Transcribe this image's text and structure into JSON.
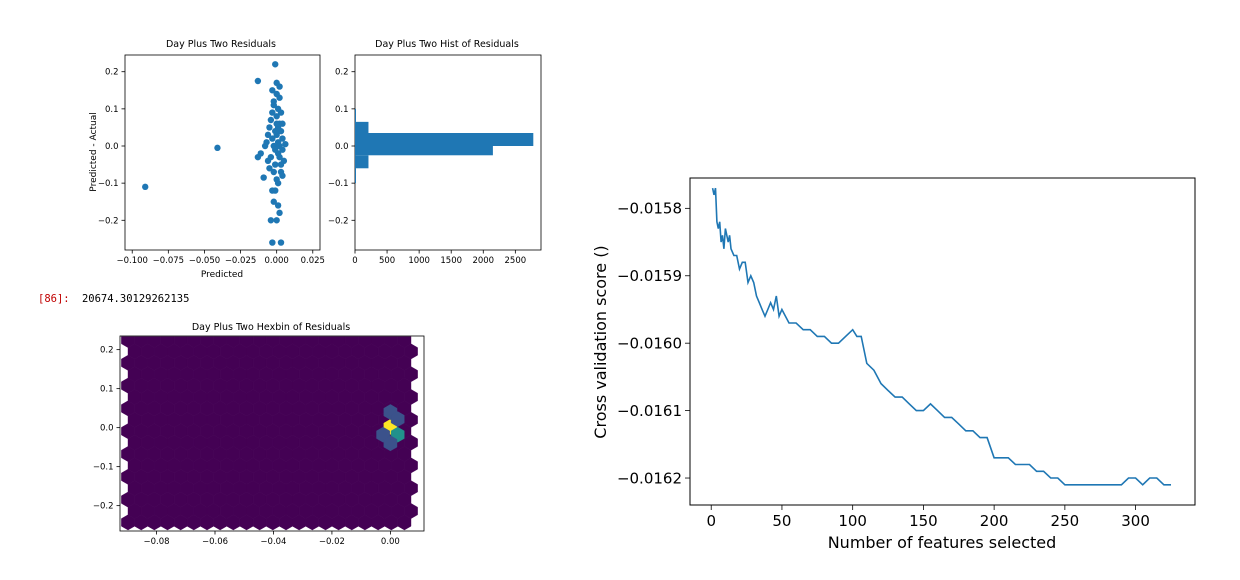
{
  "output_prompt": "[86]:",
  "output_value": "20674.30129262135",
  "colors": {
    "series": "#1f77b4",
    "hex_background": "#440154",
    "hex_low": "#3b528b",
    "hex_mid": "#21918c",
    "hex_high": "#fde725",
    "prompt": "#c00000"
  },
  "chart_data": [
    {
      "type": "scatter",
      "title": "Day Plus Two Residuals",
      "xlabel": "Predicted",
      "ylabel": "Predicted - Actual",
      "xlim": [
        -0.105,
        0.03
      ],
      "ylim": [
        -0.28,
        0.245
      ],
      "xticks": [
        -0.1,
        -0.075,
        -0.05,
        -0.025,
        0.0,
        0.025
      ],
      "xtick_labels": [
        "−0.100",
        "−0.075",
        "−0.050",
        "−0.025",
        "0.000",
        "0.025"
      ],
      "yticks": [
        -0.2,
        -0.1,
        0.0,
        0.1,
        0.2
      ],
      "ytick_labels": [
        "−0.2",
        "−0.1",
        "0.0",
        "0.1",
        "0.2"
      ],
      "points": [
        [
          -0.091,
          -0.11
        ],
        [
          -0.041,
          -0.005
        ],
        [
          -0.013,
          0.175
        ],
        [
          -0.013,
          -0.03
        ],
        [
          -0.011,
          -0.02
        ],
        [
          -0.009,
          -0.085
        ],
        [
          -0.008,
          0.0
        ],
        [
          -0.007,
          0.01
        ],
        [
          -0.006,
          -0.04
        ],
        [
          -0.006,
          0.03
        ],
        [
          -0.005,
          -0.06
        ],
        [
          -0.005,
          0.05
        ],
        [
          -0.004,
          -0.2
        ],
        [
          -0.003,
          -0.26
        ],
        [
          -0.003,
          0.15
        ],
        [
          -0.002,
          -0.15
        ],
        [
          -0.002,
          0.12
        ],
        [
          -0.001,
          0.22
        ],
        [
          -0.001,
          -0.12
        ],
        [
          0.0,
          0.17
        ],
        [
          0.0,
          0.08
        ],
        [
          0.0,
          -0.09
        ],
        [
          0.001,
          0.1
        ],
        [
          0.001,
          -0.16
        ],
        [
          0.002,
          -0.18
        ],
        [
          0.002,
          0.06
        ],
        [
          0.003,
          -0.26
        ],
        [
          0.003,
          -0.07
        ],
        [
          0.004,
          0.02
        ],
        [
          0.005,
          -0.04
        ],
        [
          0.006,
          0.005
        ],
        [
          0.003,
          0.04
        ],
        [
          -0.003,
          0.02
        ],
        [
          0.001,
          -0.02
        ],
        [
          0.004,
          -0.01
        ],
        [
          -0.004,
          0.07
        ],
        [
          0.002,
          0.13
        ],
        [
          -0.001,
          -0.05
        ],
        [
          0.0,
          0.03
        ],
        [
          0.002,
          -0.03
        ],
        [
          -0.002,
          0.0
        ],
        [
          0.001,
          0.05
        ],
        [
          -0.001,
          -0.01
        ],
        [
          0.003,
          0.09
        ],
        [
          -0.003,
          -0.12
        ],
        [
          0.0,
          -0.2
        ],
        [
          0.004,
          -0.08
        ],
        [
          -0.002,
          0.11
        ],
        [
          0.001,
          0.01
        ],
        [
          -0.004,
          -0.03
        ],
        [
          0.002,
          0.0
        ],
        [
          0.0,
          0.06
        ],
        [
          -0.001,
          0.04
        ],
        [
          0.003,
          -0.05
        ],
        [
          0.001,
          -0.1
        ],
        [
          -0.002,
          -0.07
        ],
        [
          0.0,
          0.14
        ],
        [
          0.002,
          0.16
        ],
        [
          -0.003,
          0.09
        ],
        [
          0.004,
          0.06
        ]
      ]
    },
    {
      "type": "bar",
      "orientation": "horizontal",
      "title": "Day Plus Two Hist of Residuals",
      "xlim": [
        0,
        2900
      ],
      "ylim": [
        -0.28,
        0.245
      ],
      "xticks": [
        0,
        500,
        1000,
        1500,
        2000,
        2500
      ],
      "xtick_labels": [
        "0",
        "500",
        "1000",
        "1500",
        "2000",
        "2500"
      ],
      "yticks": [
        -0.2,
        -0.1,
        0.0,
        0.1,
        0.2
      ],
      "ytick_labels": [
        "−0.2",
        "−0.1",
        "0.0",
        "0.1",
        "0.2"
      ],
      "bins": [
        {
          "from": -0.1,
          "to": -0.06,
          "count": 5
        },
        {
          "from": -0.06,
          "to": -0.025,
          "count": 210
        },
        {
          "from": -0.025,
          "to": 0.0,
          "count": 2150
        },
        {
          "from": 0.0,
          "to": 0.035,
          "count": 2780
        },
        {
          "from": 0.035,
          "to": 0.065,
          "count": 210
        },
        {
          "from": 0.065,
          "to": 0.1,
          "count": 5
        }
      ]
    },
    {
      "type": "heatmap",
      "subtype": "hexbin",
      "title": "Day Plus Two Hexbin of Residuals",
      "xlim": [
        -0.0925,
        0.0115
      ],
      "ylim": [
        -0.265,
        0.235
      ],
      "xticks": [
        -0.08,
        -0.06,
        -0.04,
        -0.02,
        0.0
      ],
      "xtick_labels": [
        "−0.08",
        "−0.06",
        "−0.04",
        "−0.02",
        "0.00"
      ],
      "yticks": [
        -0.2,
        -0.1,
        0.0,
        0.1,
        0.2
      ],
      "ytick_labels": [
        "−0.2",
        "−0.1",
        "0.0",
        "0.1",
        "0.2"
      ],
      "cells": [
        {
          "x": 0.0,
          "y": 0.002,
          "level": "high"
        },
        {
          "x": 0.0025,
          "y": -0.018,
          "level": "mid"
        },
        {
          "x": -0.0025,
          "y": -0.018,
          "level": "low"
        },
        {
          "x": 0.0,
          "y": 0.04,
          "level": "low"
        },
        {
          "x": 0.0,
          "y": -0.04,
          "level": "low"
        },
        {
          "x": 0.0025,
          "y": 0.022,
          "level": "low"
        }
      ]
    },
    {
      "type": "line",
      "title": "",
      "xlabel": "Number of features selected",
      "ylabel": "Cross validation score ()",
      "xlim": [
        -15,
        342
      ],
      "ylim": [
        -0.01624,
        -0.015755
      ],
      "xticks": [
        0,
        50,
        100,
        150,
        200,
        250,
        300
      ],
      "xtick_labels": [
        "0",
        "50",
        "100",
        "150",
        "200",
        "250",
        "300"
      ],
      "yticks": [
        -0.0162,
        -0.0161,
        -0.016,
        -0.0159,
        -0.0158
      ],
      "ytick_labels": [
        "−0.0162",
        "−0.0161",
        "−0.0160",
        "−0.0159",
        "−0.0158"
      ],
      "x": [
        1,
        2,
        3,
        4,
        5,
        6,
        7,
        8,
        9,
        10,
        11,
        12,
        13,
        14,
        16,
        18,
        20,
        22,
        24,
        26,
        28,
        30,
        32,
        34,
        36,
        38,
        40,
        42,
        44,
        46,
        48,
        50,
        55,
        60,
        65,
        70,
        75,
        80,
        85,
        90,
        95,
        100,
        103,
        106,
        108,
        110,
        115,
        120,
        125,
        130,
        135,
        140,
        145,
        150,
        155,
        160,
        165,
        170,
        175,
        180,
        185,
        190,
        195,
        200,
        205,
        210,
        215,
        220,
        225,
        230,
        235,
        240,
        245,
        250,
        255,
        260,
        265,
        270,
        275,
        280,
        285,
        290,
        295,
        300,
        305,
        310,
        315,
        320,
        325
      ],
      "y": [
        -0.01577,
        -0.01578,
        -0.01577,
        -0.01582,
        -0.01583,
        -0.01582,
        -0.01585,
        -0.01584,
        -0.01586,
        -0.01583,
        -0.01584,
        -0.01585,
        -0.01584,
        -0.01586,
        -0.01587,
        -0.01587,
        -0.01589,
        -0.01588,
        -0.01588,
        -0.01591,
        -0.0159,
        -0.01591,
        -0.01593,
        -0.01594,
        -0.01595,
        -0.01596,
        -0.01595,
        -0.01594,
        -0.01595,
        -0.01593,
        -0.01596,
        -0.01595,
        -0.01597,
        -0.01597,
        -0.01598,
        -0.01598,
        -0.01599,
        -0.01599,
        -0.016,
        -0.016,
        -0.01599,
        -0.01598,
        -0.01599,
        -0.01599,
        -0.01601,
        -0.01603,
        -0.01604,
        -0.01606,
        -0.01607,
        -0.01608,
        -0.01608,
        -0.01609,
        -0.0161,
        -0.0161,
        -0.01609,
        -0.0161,
        -0.01611,
        -0.01611,
        -0.01612,
        -0.01613,
        -0.01613,
        -0.01614,
        -0.01614,
        -0.01617,
        -0.01617,
        -0.01617,
        -0.01618,
        -0.01618,
        -0.01618,
        -0.01619,
        -0.01619,
        -0.0162,
        -0.0162,
        -0.01621,
        -0.01621,
        -0.01621,
        -0.01621,
        -0.01621,
        -0.01621,
        -0.01621,
        -0.01621,
        -0.01621,
        -0.0162,
        -0.0162,
        -0.01621,
        -0.0162,
        -0.0162,
        -0.01621,
        -0.01621
      ]
    }
  ]
}
